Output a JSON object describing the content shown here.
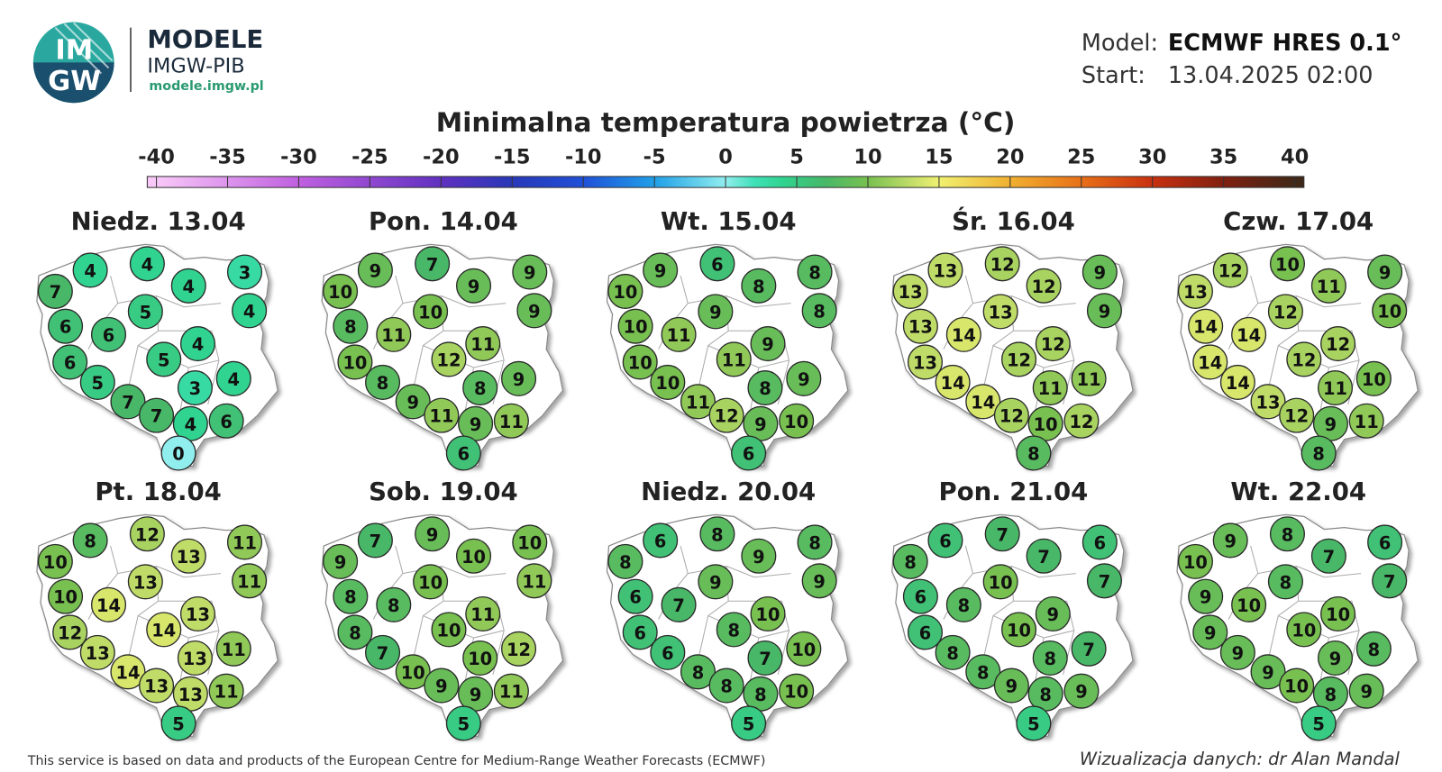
{
  "header": {
    "logo_top": "IM",
    "logo_bottom": "GW",
    "brand": "MODELE",
    "org": "IMGW-PIB",
    "url": "modele.imgw.pl",
    "model_label": "Model:",
    "model": "ECMWF HRES 0.1°",
    "start_label": "Start:",
    "start": "13.04.2025 02:00"
  },
  "title": "Minimalna temperatura powietrza (°C)",
  "colorbar": {
    "ticks": [
      -40,
      -35,
      -30,
      -25,
      -20,
      -15,
      -10,
      -5,
      0,
      5,
      10,
      15,
      20,
      25,
      30,
      35,
      40
    ]
  },
  "panels": [
    {
      "title": "Niedz. 13.04",
      "values": [
        7,
        4,
        4,
        3,
        4,
        4,
        5,
        6,
        6,
        4,
        5,
        6,
        4,
        3,
        5,
        7,
        7,
        4,
        6,
        0
      ]
    },
    {
      "title": "Pon. 14.04",
      "values": [
        10,
        9,
        7,
        9,
        9,
        9,
        10,
        8,
        11,
        11,
        12,
        10,
        9,
        8,
        8,
        9,
        11,
        9,
        11,
        6
      ]
    },
    {
      "title": "Wt. 15.04",
      "values": [
        10,
        9,
        6,
        8,
        8,
        8,
        9,
        10,
        11,
        9,
        11,
        10,
        9,
        8,
        10,
        11,
        12,
        9,
        10,
        6
      ]
    },
    {
      "title": "Śr. 16.04",
      "values": [
        13,
        13,
        12,
        9,
        12,
        9,
        13,
        13,
        14,
        12,
        12,
        13,
        11,
        11,
        14,
        14,
        12,
        10,
        12,
        8
      ]
    },
    {
      "title": "Czw. 17.04",
      "values": [
        13,
        12,
        10,
        9,
        11,
        10,
        12,
        14,
        14,
        12,
        12,
        14,
        10,
        11,
        14,
        13,
        12,
        9,
        11,
        8
      ]
    },
    {
      "title": "Pt. 18.04",
      "values": [
        10,
        8,
        12,
        11,
        13,
        11,
        13,
        10,
        14,
        13,
        14,
        12,
        11,
        13,
        13,
        14,
        13,
        13,
        11,
        5
      ]
    },
    {
      "title": "Sob. 19.04",
      "values": [
        9,
        7,
        9,
        10,
        10,
        11,
        10,
        8,
        8,
        11,
        10,
        8,
        12,
        10,
        7,
        10,
        9,
        9,
        11,
        5
      ]
    },
    {
      "title": "Niedz. 20.04",
      "values": [
        8,
        6,
        8,
        8,
        9,
        9,
        9,
        6,
        7,
        10,
        8,
        6,
        10,
        7,
        6,
        8,
        8,
        8,
        10,
        5
      ]
    },
    {
      "title": "Pon. 21.04",
      "values": [
        8,
        6,
        7,
        6,
        7,
        7,
        10,
        6,
        8,
        9,
        10,
        6,
        7,
        8,
        8,
        8,
        9,
        8,
        9,
        5
      ]
    },
    {
      "title": "Wt. 22.04",
      "values": [
        10,
        9,
        8,
        6,
        7,
        7,
        8,
        9,
        10,
        10,
        10,
        9,
        8,
        9,
        9,
        9,
        10,
        8,
        9,
        5
      ]
    }
  ],
  "footer": {
    "source": "This service is based on data and products of the European Centre for Medium-Range Weather Forecasts (ECMWF)",
    "credit": "Wizualizacja danych: dr Alan Mandal"
  }
}
